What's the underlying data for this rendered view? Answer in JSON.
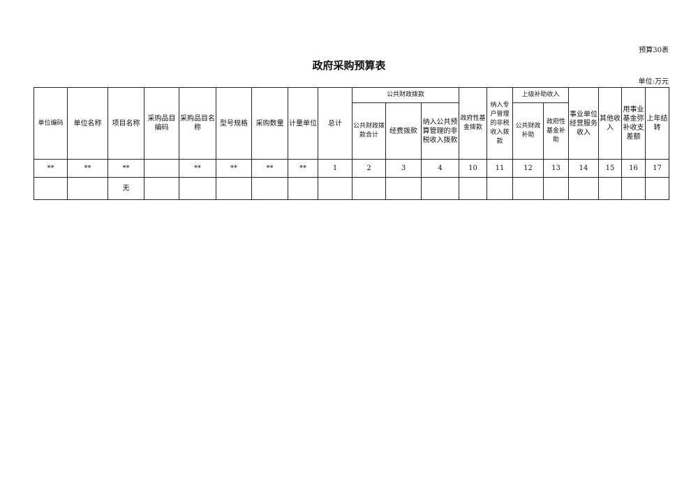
{
  "form_tag": "预算30表",
  "title": "政府采购预算表",
  "unit": "单位:万元",
  "headers": {
    "unit_code": "单位编码",
    "unit_name": "单位名称",
    "project_name": "项目名称",
    "item_code": "采购品目编码",
    "item_name": "采购品目名称",
    "model": "型号规格",
    "quantity": "采购数量",
    "measure_unit": "计量单位",
    "total": "总计",
    "public_finance": "公共财政拨款",
    "pf_total": "公共财政拨款合计",
    "pf_funds": "经费拨款",
    "pf_nontax": "纳入公共预算管理的非税收入拨款",
    "gov_fund": "政府性基金拨款",
    "special_nontax": "纳入专户管理的非税收入拨款",
    "superior": "上级补助收入",
    "sup_public": "公共财政补助",
    "sup_gov": "政府性基金补助",
    "business": "事业单位经营服务收入",
    "other": "其他收入",
    "fund_gap": "用事业基金弥补收支差额",
    "carryover": "上年结转"
  },
  "rows": [
    [
      "**",
      "**",
      "**",
      "",
      "**",
      "**",
      "**",
      "**",
      "1",
      "2",
      "3",
      "4",
      "10",
      "11",
      "12",
      "13",
      "14",
      "15",
      "16",
      "17"
    ],
    [
      "",
      "",
      "无",
      "",
      "",
      "",
      "",
      "",
      "",
      "",
      "",
      "",
      "",
      "",
      "",
      "",
      "",
      "",
      "",
      ""
    ]
  ]
}
